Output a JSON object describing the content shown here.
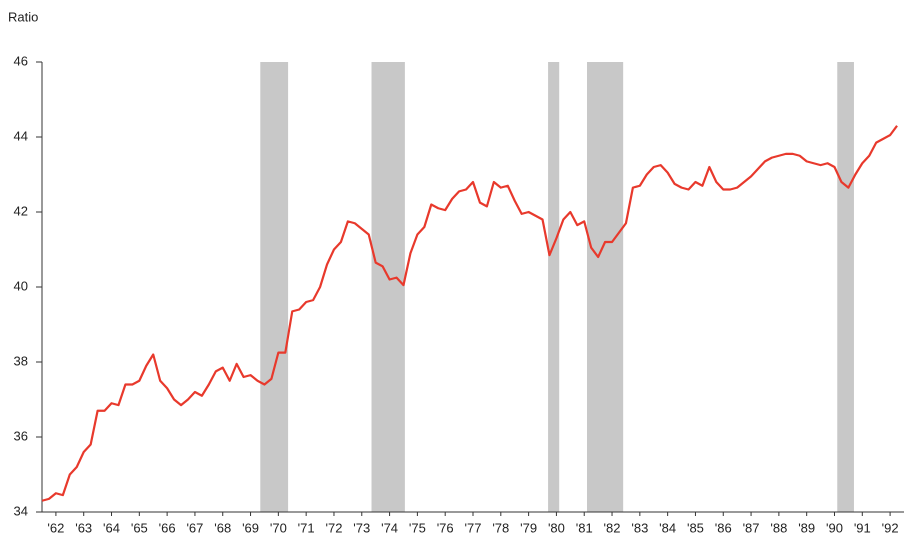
{
  "chart_data": {
    "type": "line",
    "y_axis_label": "Ratio",
    "x": [
      1962,
      1962.25,
      1962.5,
      1962.75,
      1963,
      1963.25,
      1963.5,
      1963.75,
      1964,
      1964.25,
      1964.5,
      1964.75,
      1965,
      1965.25,
      1965.5,
      1965.75,
      1966,
      1966.25,
      1966.5,
      1966.75,
      1967,
      1967.25,
      1967.5,
      1967.75,
      1968,
      1968.25,
      1968.5,
      1968.75,
      1969,
      1969.25,
      1969.5,
      1969.75,
      1970,
      1970.25,
      1970.5,
      1970.75,
      1971,
      1971.25,
      1971.5,
      1971.75,
      1972,
      1972.25,
      1972.5,
      1972.75,
      1973,
      1973.25,
      1973.5,
      1973.75,
      1974,
      1974.25,
      1974.5,
      1974.75,
      1975,
      1975.25,
      1975.5,
      1975.75,
      1976,
      1976.25,
      1976.5,
      1976.75,
      1977,
      1977.25,
      1977.5,
      1977.75,
      1978,
      1978.25,
      1978.5,
      1978.75,
      1979,
      1979.25,
      1979.5,
      1979.75,
      1980,
      1980.25,
      1980.5,
      1980.75,
      1981,
      1981.25,
      1981.5,
      1981.75,
      1982,
      1982.25,
      1982.5,
      1982.75,
      1983,
      1983.25,
      1983.5,
      1983.75,
      1984,
      1984.25,
      1984.5,
      1984.75,
      1985,
      1985.25,
      1985.5,
      1985.75,
      1986,
      1986.25,
      1986.5,
      1986.75,
      1987,
      1987.25,
      1987.5,
      1987.75,
      1988,
      1988.25,
      1988.5,
      1988.75,
      1989,
      1989.25,
      1989.5,
      1989.75,
      1990,
      1990.25,
      1990.5,
      1990.75,
      1991,
      1991.25,
      1991.5,
      1991.75,
      1992,
      1992.25,
      1992.5,
      1992.75
    ],
    "series": [
      {
        "color": "#e8392c",
        "values": [
          34.3,
          34.35,
          34.5,
          34.45,
          35.0,
          35.2,
          35.6,
          35.8,
          36.7,
          36.7,
          36.9,
          36.85,
          37.4,
          37.4,
          37.5,
          37.9,
          38.2,
          37.5,
          37.3,
          37.0,
          36.85,
          37.0,
          37.2,
          37.1,
          37.4,
          37.75,
          37.85,
          37.5,
          37.95,
          37.6,
          37.65,
          37.5,
          37.4,
          37.55,
          38.25,
          38.25,
          39.35,
          39.4,
          39.6,
          39.65,
          40.0,
          40.6,
          41.0,
          41.2,
          41.75,
          41.7,
          41.55,
          41.4,
          40.65,
          40.55,
          40.2,
          40.25,
          40.05,
          40.9,
          41.4,
          41.6,
          42.2,
          42.1,
          42.05,
          42.35,
          42.55,
          42.6,
          42.8,
          42.25,
          42.15,
          42.8,
          42.65,
          42.7,
          42.3,
          41.95,
          42.0,
          41.9,
          41.8,
          40.85,
          41.3,
          41.8,
          42.0,
          41.65,
          41.75,
          41.05,
          40.8,
          41.2,
          41.2,
          41.45,
          41.7,
          42.65,
          42.7,
          43.0,
          43.2,
          43.25,
          43.05,
          42.75,
          42.65,
          42.6,
          42.8,
          42.7,
          43.2,
          42.8,
          42.6,
          42.6,
          42.65,
          42.8,
          42.95,
          43.15,
          43.35,
          43.45,
          43.5,
          43.55,
          43.55,
          43.5,
          43.35,
          43.3,
          43.25,
          43.3,
          43.2,
          42.8,
          42.65,
          43.0,
          43.3,
          43.5,
          43.85,
          43.95,
          44.05,
          44.3
        ]
      }
    ],
    "shaded_periods": [
      [
        1969.85,
        1970.85
      ],
      [
        1973.85,
        1975.05
      ],
      [
        1980.2,
        1980.6
      ],
      [
        1981.6,
        1982.9
      ],
      [
        1990.6,
        1991.2
      ]
    ],
    "shade_color": "#c8c8c8",
    "xlim": [
      1962,
      1993
    ],
    "xticks": [
      {
        "value": 1962.5,
        "label": "'62"
      },
      {
        "value": 1963.5,
        "label": "'63"
      },
      {
        "value": 1964.5,
        "label": "'64"
      },
      {
        "value": 1965.5,
        "label": "'65"
      },
      {
        "value": 1966.5,
        "label": "'66"
      },
      {
        "value": 1967.5,
        "label": "'67"
      },
      {
        "value": 1968.5,
        "label": "'68"
      },
      {
        "value": 1969.5,
        "label": "'69"
      },
      {
        "value": 1970.5,
        "label": "'70"
      },
      {
        "value": 1971.5,
        "label": "'71"
      },
      {
        "value": 1972.5,
        "label": "'72"
      },
      {
        "value": 1973.5,
        "label": "'73"
      },
      {
        "value": 1974.5,
        "label": "'74"
      },
      {
        "value": 1975.5,
        "label": "'75"
      },
      {
        "value": 1976.5,
        "label": "'76"
      },
      {
        "value": 1977.5,
        "label": "'77"
      },
      {
        "value": 1978.5,
        "label": "'78"
      },
      {
        "value": 1979.5,
        "label": "'79"
      },
      {
        "value": 1980.5,
        "label": "'80"
      },
      {
        "value": 1981.5,
        "label": "'81"
      },
      {
        "value": 1982.5,
        "label": "'82"
      },
      {
        "value": 1983.5,
        "label": "'83"
      },
      {
        "value": 1984.5,
        "label": "'84"
      },
      {
        "value": 1985.5,
        "label": "'85"
      },
      {
        "value": 1986.5,
        "label": "'86"
      },
      {
        "value": 1987.5,
        "label": "'87"
      },
      {
        "value": 1988.5,
        "label": "'88"
      },
      {
        "value": 1989.5,
        "label": "'89"
      },
      {
        "value": 1990.5,
        "label": "'90"
      },
      {
        "value": 1991.5,
        "label": "'91"
      },
      {
        "value": 1992.5,
        "label": "'92"
      }
    ],
    "ylim": [
      34,
      46
    ],
    "yticks": [
      34,
      36,
      38,
      40,
      42,
      44,
      46
    ]
  }
}
